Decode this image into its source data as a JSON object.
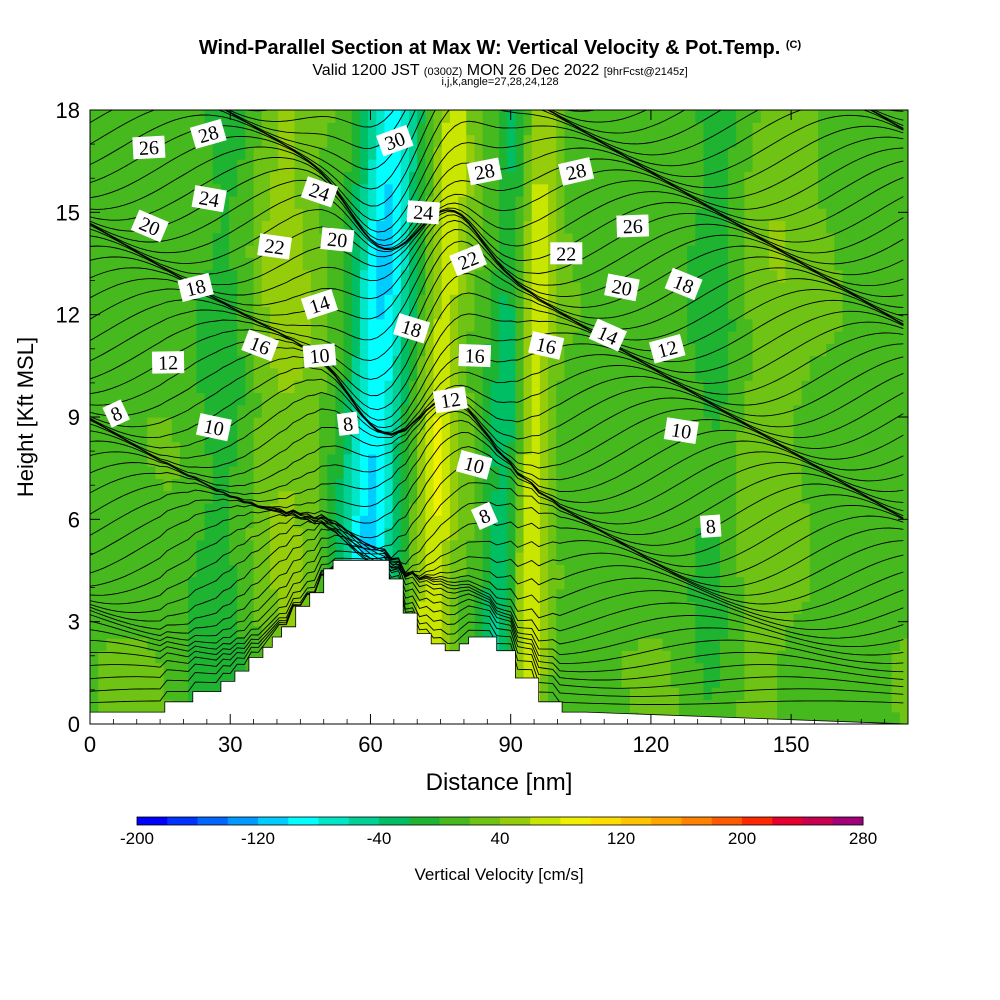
{
  "title": {
    "main": "Wind-Parallel Section at Max W: Vertical Velocity & Pot.Temp.",
    "copyright": "(C)",
    "line2_a": "Valid 1200 JST",
    "line2_b": "(0300Z)",
    "line2_c": "MON 26 Dec 2022",
    "line2_d": "[9hrFcst@2145z]",
    "line3": "i,j,k,angle=27,28,24,128"
  },
  "chart_data": {
    "type": "heatmap",
    "xlabel": "Distance [nm]",
    "ylabel": "Height [Kft MSL]",
    "xlim": [
      0,
      175
    ],
    "ylim": [
      0,
      18
    ],
    "xticks": [
      0,
      30,
      60,
      90,
      120,
      150
    ],
    "yticks": [
      0,
      3,
      6,
      9,
      12,
      15,
      18
    ],
    "colorbar": {
      "label": "Vertical Velocity [cm/s]",
      "ticks": [
        -200,
        -120,
        -40,
        40,
        120,
        200,
        280
      ],
      "range": [
        -200,
        280
      ],
      "step": 20,
      "colors": [
        "#0000ff",
        "#0033ff",
        "#0066ff",
        "#0099ff",
        "#00ccff",
        "#00ffff",
        "#00e6c8",
        "#00d296",
        "#00be64",
        "#1eb432",
        "#46b91e",
        "#6ec314",
        "#96cd0a",
        "#c8e600",
        "#f0f000",
        "#ffdc00",
        "#ffc300",
        "#ffa500",
        "#ff8200",
        "#ff5a00",
        "#ff2800",
        "#e6002d",
        "#c80050",
        "#a00078",
        "#6e00a0"
      ]
    },
    "terrain_height_kft": [
      0.35,
      0.35,
      0.35,
      0.35,
      0.35,
      0.35,
      0.35,
      0.35,
      0.35,
      0.35,
      0.35,
      0.35,
      0.35,
      0.35,
      0.35,
      0.35,
      0.65,
      0.65,
      0.65,
      0.65,
      0.65,
      0.65,
      0.95,
      0.95,
      0.95,
      0.95,
      0.95,
      0.95,
      1.25,
      1.25,
      1.25,
      1.55,
      1.55,
      1.55,
      1.95,
      1.95,
      1.95,
      2.25,
      2.25,
      2.55,
      2.55,
      2.85,
      2.85,
      2.85,
      3.45,
      3.45,
      3.45,
      3.85,
      3.85,
      3.85,
      4.55,
      4.55,
      4.8,
      4.8,
      4.8,
      4.8,
      4.8,
      4.8,
      4.8,
      4.8,
      4.8,
      4.8,
      4.8,
      4.8,
      4.25,
      4.25,
      4.25,
      3.25,
      3.25,
      3.25,
      2.65,
      2.65,
      2.65,
      2.35,
      2.35,
      2.35,
      2.15,
      2.15,
      2.15,
      2.35,
      2.35,
      2.55,
      2.55,
      2.55,
      2.55,
      2.55,
      2.55,
      2.15,
      2.15,
      2.15,
      2.15,
      1.35,
      1.35,
      1.35,
      1.35,
      1.35,
      0.65,
      0.65,
      0.65,
      0.65,
      0.65,
      0.35,
      0.35,
      0.35,
      0.35,
      0.35
    ],
    "velocity_features": [
      {
        "center_x": 59,
        "slope_nm_per_kft": 0.42,
        "width_nm": 6,
        "value": -110
      },
      {
        "center_x": 73,
        "slope_nm_per_kft": 0.35,
        "width_nm": 4,
        "value": 60
      },
      {
        "center_x": 88,
        "slope_nm_per_kft": 0.3,
        "width_nm": 4.5,
        "value": -60
      },
      {
        "center_x": 94,
        "slope_nm_per_kft": 0.1,
        "width_nm": 4,
        "value": 70
      },
      {
        "center_x": 43,
        "slope_nm_per_kft": -0.2,
        "width_nm": 8,
        "value": 30
      },
      {
        "center_x": 27,
        "slope_nm_per_kft": 0.3,
        "width_nm": 7,
        "value": -30
      },
      {
        "center_x": 133,
        "slope_nm_per_kft": 0.15,
        "width_nm": 6,
        "value": -25
      },
      {
        "center_x": 144,
        "slope_nm_per_kft": 0.2,
        "width_nm": 8,
        "value": 15
      }
    ],
    "theta_contour_labels": [
      {
        "text": "8",
        "x": 5.6,
        "y": 9.1
      },
      {
        "text": "10",
        "x": 26.5,
        "y": 8.7
      },
      {
        "text": "12",
        "x": 16.7,
        "y": 10.6
      },
      {
        "text": "18",
        "x": 22.6,
        "y": 12.8
      },
      {
        "text": "20",
        "x": 12.8,
        "y": 14.6
      },
      {
        "text": "24",
        "x": 25.5,
        "y": 15.4
      },
      {
        "text": "26",
        "x": 12.6,
        "y": 16.9
      },
      {
        "text": "28",
        "x": 25.3,
        "y": 17.3
      },
      {
        "text": "16",
        "x": 36.4,
        "y": 11.1
      },
      {
        "text": "22",
        "x": 39.5,
        "y": 14.0
      },
      {
        "text": "10",
        "x": 49.1,
        "y": 10.8
      },
      {
        "text": "14",
        "x": 49.1,
        "y": 12.3
      },
      {
        "text": "24",
        "x": 49.1,
        "y": 15.6
      },
      {
        "text": "20",
        "x": 52.9,
        "y": 14.2
      },
      {
        "text": "8",
        "x": 55.2,
        "y": 8.8
      },
      {
        "text": "30",
        "x": 65.2,
        "y": 17.1
      },
      {
        "text": "18",
        "x": 68.8,
        "y": 11.6
      },
      {
        "text": "24",
        "x": 71.3,
        "y": 15.0
      },
      {
        "text": "12",
        "x": 77.1,
        "y": 9.5
      },
      {
        "text": "22",
        "x": 80.9,
        "y": 13.6
      },
      {
        "text": "10",
        "x": 82.2,
        "y": 7.6
      },
      {
        "text": "16",
        "x": 82.3,
        "y": 10.8
      },
      {
        "text": "28",
        "x": 84.4,
        "y": 16.2
      },
      {
        "text": "8",
        "x": 84.4,
        "y": 6.1
      },
      {
        "text": "16",
        "x": 97.6,
        "y": 11.1
      },
      {
        "text": "22",
        "x": 101.9,
        "y": 13.8
      },
      {
        "text": "28",
        "x": 104.0,
        "y": 16.2
      },
      {
        "text": "14",
        "x": 110.8,
        "y": 11.4
      },
      {
        "text": "20",
        "x": 113.8,
        "y": 12.8
      },
      {
        "text": "26",
        "x": 116.1,
        "y": 14.6
      },
      {
        "text": "12",
        "x": 123.5,
        "y": 11.0
      },
      {
        "text": "18",
        "x": 127.0,
        "y": 12.9
      },
      {
        "text": "10",
        "x": 126.5,
        "y": 8.6
      },
      {
        "text": "8",
        "x": 132.8,
        "y": 5.8
      }
    ]
  }
}
